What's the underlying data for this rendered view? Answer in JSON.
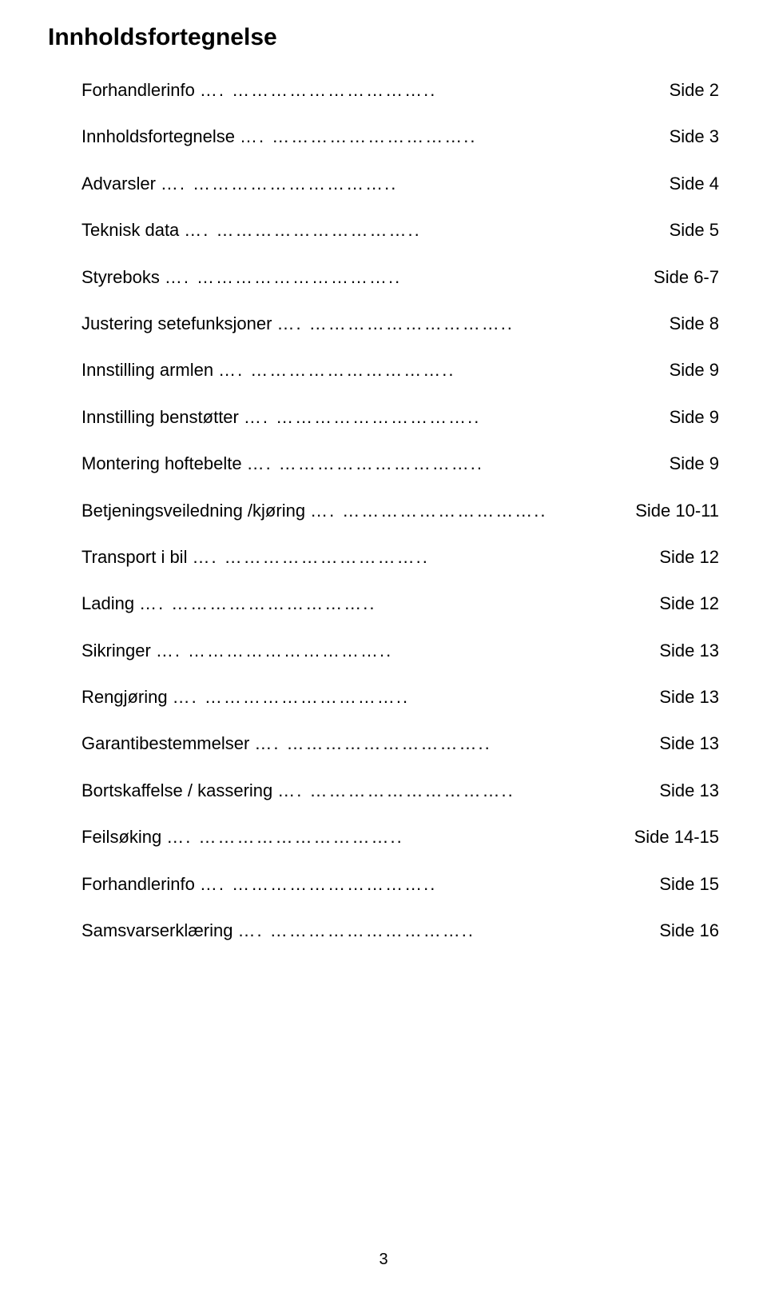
{
  "document": {
    "title": "Innholdsfortegnelse",
    "page_number": "3",
    "background_color": "#ffffff",
    "text_color": "#000000",
    "title_fontsize": 30,
    "body_fontsize": 22
  },
  "toc": {
    "entries": [
      {
        "label": "Forhandlerinfo",
        "page": "Side  2"
      },
      {
        "label": "Innholdsfortegnelse",
        "page": "Side  3"
      },
      {
        "label": "Advarsler",
        "page": "Side  4"
      },
      {
        "label": "Teknisk data",
        "page": "Side  5"
      },
      {
        "label": "Styreboks",
        "page": "Side  6-7"
      },
      {
        "label": "Justering setefunksjoner",
        "page": "Side  8"
      },
      {
        "label": "Innstilling armlen",
        "page": "Side  9"
      },
      {
        "label": "Innstilling benstøtter",
        "page": "Side  9"
      },
      {
        "label": "Montering hoftebelte",
        "page": "Side  9"
      },
      {
        "label": "Betjeningsveiledning /kjøring",
        "page": "Side  10-11"
      },
      {
        "label": "Transport i bil",
        "page": "Side  12"
      },
      {
        "label": "Lading",
        "page": "Side 12"
      },
      {
        "label": "Sikringer",
        "page": "Side 13"
      },
      {
        "label": "Rengjøring",
        "page": "Side 13"
      },
      {
        "label": "Garantibestemmelser",
        "page": "Side 13"
      },
      {
        "label": "Bortskaffelse / kassering",
        "page": "Side 13"
      },
      {
        "label": "Feilsøking",
        "page": "Side 14-15"
      },
      {
        "label": "Forhandlerinfo",
        "page": "Side 15"
      },
      {
        "label": "Samsvarserklæring",
        "page": "Side 16"
      }
    ]
  }
}
